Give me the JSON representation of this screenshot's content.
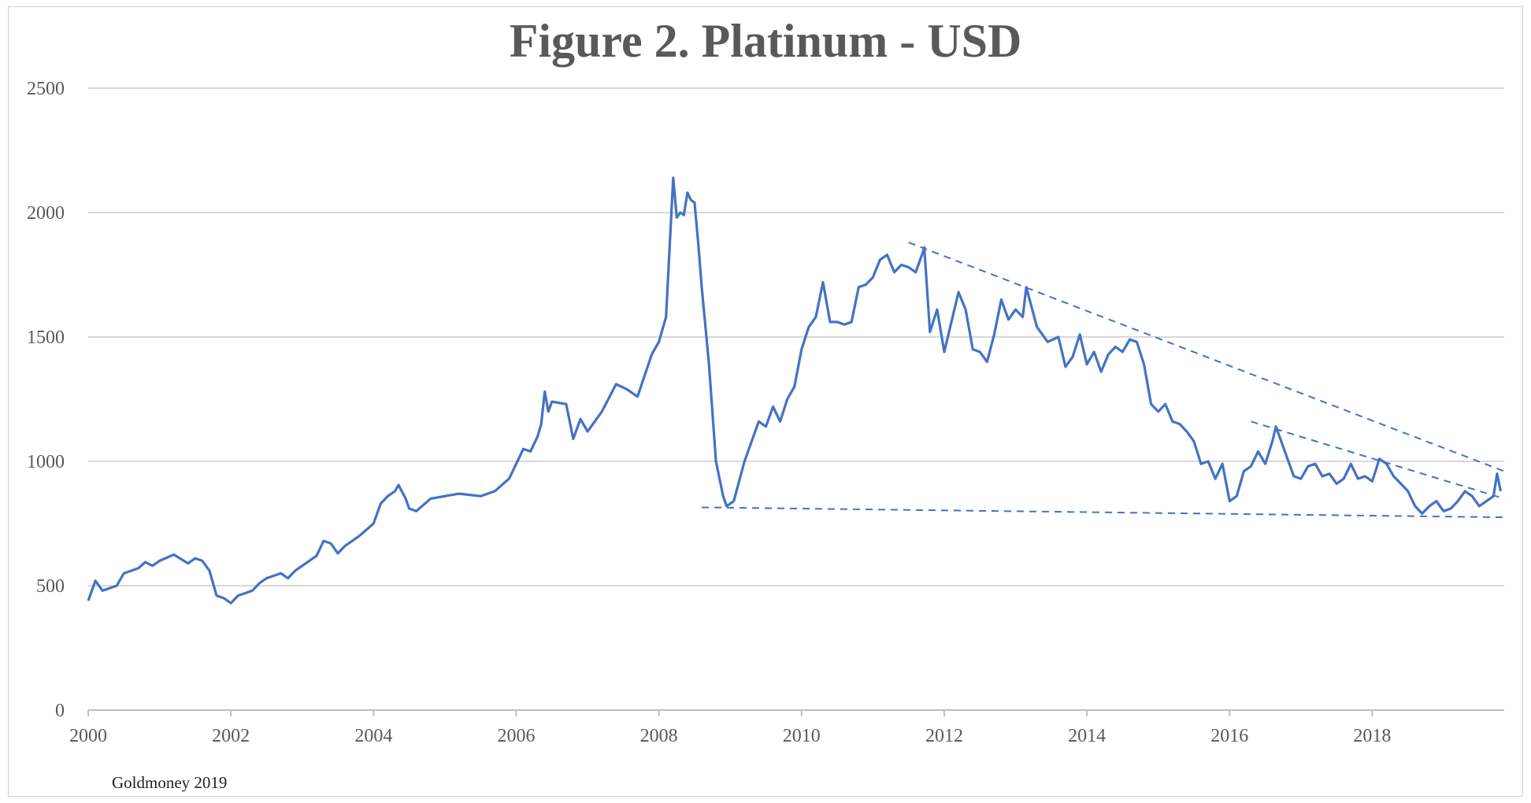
{
  "chart_data": {
    "type": "line",
    "title": "Figure 2. Platinum - USD",
    "source": "Goldmoney 2019",
    "xlabel": "",
    "ylabel": "",
    "xlim": [
      2000,
      2019.85
    ],
    "ylim": [
      0,
      2500
    ],
    "x_ticks": [
      2000,
      2002,
      2004,
      2006,
      2008,
      2010,
      2012,
      2014,
      2016,
      2018
    ],
    "x_tick_labels": [
      "2000",
      "2002",
      "2004",
      "2006",
      "2008",
      "2010",
      "2012",
      "2014",
      "2016",
      "2018"
    ],
    "y_ticks": [
      0,
      500,
      1000,
      1500,
      2000,
      2500
    ],
    "y_tick_labels": [
      "0",
      "500",
      "1000",
      "1500",
      "2000",
      "2500"
    ],
    "grid": "horizontal",
    "legend": "none",
    "colors": {
      "series": "#4472C4",
      "grid": "#d9d9d9",
      "axis": "#bfbfbf",
      "text": "#595959"
    },
    "series": [
      {
        "points": [
          [
            2000.0,
            440
          ],
          [
            2000.1,
            520
          ],
          [
            2000.2,
            480
          ],
          [
            2000.4,
            500
          ],
          [
            2000.5,
            550
          ],
          [
            2000.7,
            570
          ],
          [
            2000.8,
            595
          ],
          [
            2000.9,
            580
          ],
          [
            2001.0,
            600
          ],
          [
            2001.2,
            625
          ],
          [
            2001.4,
            590
          ],
          [
            2001.5,
            610
          ],
          [
            2001.6,
            600
          ],
          [
            2001.7,
            560
          ],
          [
            2001.8,
            460
          ],
          [
            2001.9,
            450
          ],
          [
            2002.0,
            430
          ],
          [
            2002.1,
            460
          ],
          [
            2002.2,
            470
          ],
          [
            2002.3,
            480
          ],
          [
            2002.4,
            510
          ],
          [
            2002.5,
            530
          ],
          [
            2002.6,
            540
          ],
          [
            2002.7,
            550
          ],
          [
            2002.8,
            530
          ],
          [
            2002.9,
            560
          ],
          [
            2003.0,
            580
          ],
          [
            2003.2,
            620
          ],
          [
            2003.3,
            680
          ],
          [
            2003.4,
            670
          ],
          [
            2003.5,
            630
          ],
          [
            2003.6,
            660
          ],
          [
            2003.8,
            700
          ],
          [
            2004.0,
            750
          ],
          [
            2004.1,
            830
          ],
          [
            2004.2,
            860
          ],
          [
            2004.3,
            880
          ],
          [
            2004.35,
            905
          ],
          [
            2004.45,
            850
          ],
          [
            2004.5,
            810
          ],
          [
            2004.6,
            800
          ],
          [
            2004.8,
            850
          ],
          [
            2005.0,
            860
          ],
          [
            2005.2,
            870
          ],
          [
            2005.5,
            860
          ],
          [
            2005.7,
            880
          ],
          [
            2005.9,
            930
          ],
          [
            2006.0,
            990
          ],
          [
            2006.1,
            1050
          ],
          [
            2006.2,
            1040
          ],
          [
            2006.3,
            1100
          ],
          [
            2006.35,
            1150
          ],
          [
            2006.4,
            1280
          ],
          [
            2006.45,
            1200
          ],
          [
            2006.5,
            1240
          ],
          [
            2006.7,
            1230
          ],
          [
            2006.8,
            1090
          ],
          [
            2006.9,
            1170
          ],
          [
            2007.0,
            1120
          ],
          [
            2007.2,
            1200
          ],
          [
            2007.4,
            1310
          ],
          [
            2007.55,
            1290
          ],
          [
            2007.7,
            1260
          ],
          [
            2007.9,
            1430
          ],
          [
            2008.0,
            1480
          ],
          [
            2008.1,
            1580
          ],
          [
            2008.2,
            2140
          ],
          [
            2008.25,
            1980
          ],
          [
            2008.3,
            2000
          ],
          [
            2008.35,
            1990
          ],
          [
            2008.4,
            2080
          ],
          [
            2008.45,
            2050
          ],
          [
            2008.5,
            2040
          ],
          [
            2008.55,
            1880
          ],
          [
            2008.6,
            1700
          ],
          [
            2008.7,
            1400
          ],
          [
            2008.8,
            1000
          ],
          [
            2008.9,
            860
          ],
          [
            2008.95,
            820
          ],
          [
            2009.05,
            840
          ],
          [
            2009.2,
            1000
          ],
          [
            2009.3,
            1080
          ],
          [
            2009.4,
            1160
          ],
          [
            2009.5,
            1140
          ],
          [
            2009.6,
            1220
          ],
          [
            2009.7,
            1160
          ],
          [
            2009.8,
            1250
          ],
          [
            2009.9,
            1300
          ],
          [
            2010.0,
            1450
          ],
          [
            2010.1,
            1540
          ],
          [
            2010.2,
            1580
          ],
          [
            2010.3,
            1720
          ],
          [
            2010.4,
            1560
          ],
          [
            2010.5,
            1560
          ],
          [
            2010.6,
            1550
          ],
          [
            2010.7,
            1560
          ],
          [
            2010.8,
            1700
          ],
          [
            2010.9,
            1710
          ],
          [
            2011.0,
            1740
          ],
          [
            2011.1,
            1810
          ],
          [
            2011.2,
            1830
          ],
          [
            2011.3,
            1760
          ],
          [
            2011.4,
            1790
          ],
          [
            2011.5,
            1780
          ],
          [
            2011.6,
            1760
          ],
          [
            2011.7,
            1840
          ],
          [
            2011.72,
            1860
          ],
          [
            2011.8,
            1520
          ],
          [
            2011.9,
            1610
          ],
          [
            2012.0,
            1440
          ],
          [
            2012.1,
            1560
          ],
          [
            2012.2,
            1680
          ],
          [
            2012.3,
            1610
          ],
          [
            2012.4,
            1450
          ],
          [
            2012.5,
            1440
          ],
          [
            2012.6,
            1400
          ],
          [
            2012.7,
            1510
          ],
          [
            2012.8,
            1650
          ],
          [
            2012.9,
            1570
          ],
          [
            2013.0,
            1610
          ],
          [
            2013.1,
            1580
          ],
          [
            2013.15,
            1700
          ],
          [
            2013.3,
            1540
          ],
          [
            2013.45,
            1480
          ],
          [
            2013.6,
            1500
          ],
          [
            2013.7,
            1380
          ],
          [
            2013.8,
            1420
          ],
          [
            2013.9,
            1510
          ],
          [
            2014.0,
            1390
          ],
          [
            2014.1,
            1440
          ],
          [
            2014.2,
            1360
          ],
          [
            2014.3,
            1430
          ],
          [
            2014.4,
            1460
          ],
          [
            2014.5,
            1440
          ],
          [
            2014.6,
            1490
          ],
          [
            2014.7,
            1480
          ],
          [
            2014.8,
            1390
          ],
          [
            2014.9,
            1230
          ],
          [
            2015.0,
            1200
          ],
          [
            2015.1,
            1230
          ],
          [
            2015.2,
            1160
          ],
          [
            2015.3,
            1150
          ],
          [
            2015.4,
            1120
          ],
          [
            2015.5,
            1080
          ],
          [
            2015.6,
            990
          ],
          [
            2015.7,
            1000
          ],
          [
            2015.8,
            930
          ],
          [
            2015.9,
            990
          ],
          [
            2016.0,
            840
          ],
          [
            2016.1,
            860
          ],
          [
            2016.2,
            960
          ],
          [
            2016.3,
            980
          ],
          [
            2016.4,
            1040
          ],
          [
            2016.5,
            990
          ],
          [
            2016.6,
            1080
          ],
          [
            2016.65,
            1140
          ],
          [
            2016.8,
            1020
          ],
          [
            2016.9,
            940
          ],
          [
            2017.0,
            930
          ],
          [
            2017.1,
            980
          ],
          [
            2017.2,
            990
          ],
          [
            2017.3,
            940
          ],
          [
            2017.4,
            950
          ],
          [
            2017.5,
            910
          ],
          [
            2017.6,
            930
          ],
          [
            2017.7,
            990
          ],
          [
            2017.8,
            930
          ],
          [
            2017.9,
            940
          ],
          [
            2018.0,
            920
          ],
          [
            2018.1,
            1010
          ],
          [
            2018.2,
            990
          ],
          [
            2018.3,
            940
          ],
          [
            2018.4,
            910
          ],
          [
            2018.5,
            880
          ],
          [
            2018.6,
            820
          ],
          [
            2018.7,
            790
          ],
          [
            2018.8,
            820
          ],
          [
            2018.9,
            840
          ],
          [
            2019.0,
            800
          ],
          [
            2019.1,
            810
          ],
          [
            2019.2,
            840
          ],
          [
            2019.3,
            880
          ],
          [
            2019.4,
            860
          ],
          [
            2019.5,
            820
          ],
          [
            2019.6,
            840
          ],
          [
            2019.7,
            860
          ],
          [
            2019.75,
            950
          ],
          [
            2019.8,
            880
          ]
        ]
      }
    ],
    "trendlines": [
      {
        "from": [
          2011.5,
          1880
        ],
        "to": [
          2019.85,
          960
        ]
      },
      {
        "from": [
          2016.3,
          1160
        ],
        "to": [
          2019.85,
          850
        ]
      },
      {
        "from": [
          2008.6,
          815
        ],
        "to": [
          2019.85,
          775
        ]
      }
    ]
  }
}
